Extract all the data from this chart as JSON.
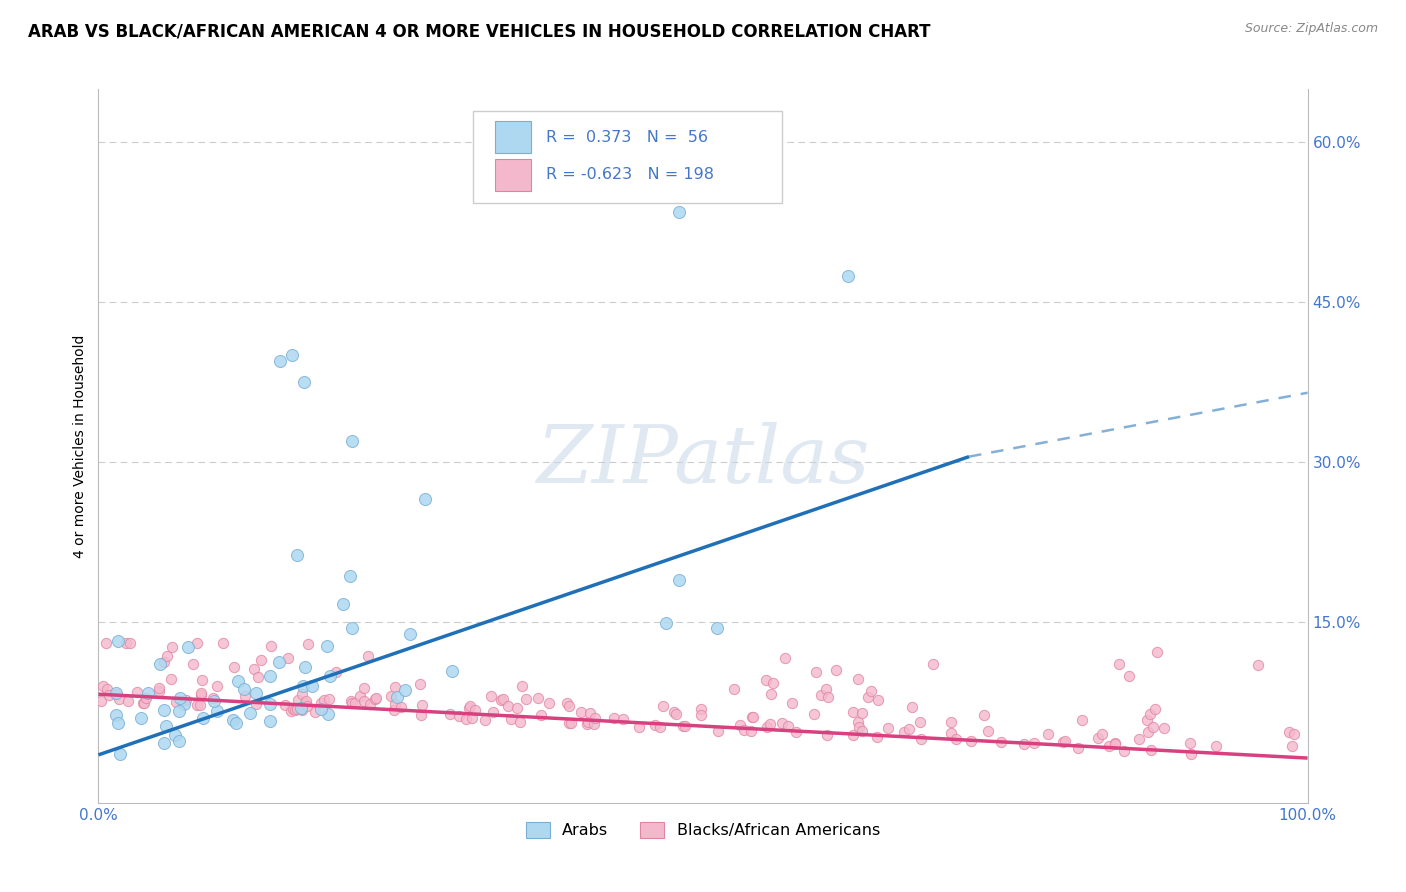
{
  "title": "ARAB VS BLACK/AFRICAN AMERICAN 4 OR MORE VEHICLES IN HOUSEHOLD CORRELATION CHART",
  "source": "Source: ZipAtlas.com",
  "ylabel_label": "4 or more Vehicles in Household",
  "arab_color_edge": "#7aafd4",
  "arab_color_fill": "#add8f0",
  "black_color_edge": "#e085a0",
  "black_color_fill": "#f4b8cc",
  "trend_arab_color": "#2070b8",
  "trend_black_color": "#d84080",
  "background_color": "#ffffff",
  "grid_color": "#cccccc",
  "watermark": "ZIPatlas",
  "title_fontsize": 12,
  "axis_label_fontsize": 10,
  "tick_fontsize": 11,
  "tick_color": "#4477cc",
  "xlim": [
    0,
    1.0
  ],
  "ylim": [
    -0.02,
    0.65
  ],
  "ytick_vals": [
    0.0,
    0.15,
    0.3,
    0.45,
    0.6
  ],
  "ytick_labels": [
    "",
    "15.0%",
    "30.0%",
    "45.0%",
    "60.0%"
  ],
  "xtick_vals": [
    0.0,
    1.0
  ],
  "xtick_labels": [
    "0.0%",
    "100.0%"
  ],
  "arab_R": "0.373",
  "arab_N": "56",
  "black_R": "-0.623",
  "black_N": "198",
  "arab_trend_x0": 0.0,
  "arab_trend_y0": 0.025,
  "arab_trend_x1": 0.72,
  "arab_trend_y1": 0.305,
  "arab_trend_dash_x0": 0.72,
  "arab_trend_dash_y0": 0.305,
  "arab_trend_dash_x1": 1.0,
  "arab_trend_dash_y1": 0.365,
  "black_trend_x0": 0.0,
  "black_trend_y0": 0.082,
  "black_trend_x1": 1.0,
  "black_trend_y1": 0.022
}
